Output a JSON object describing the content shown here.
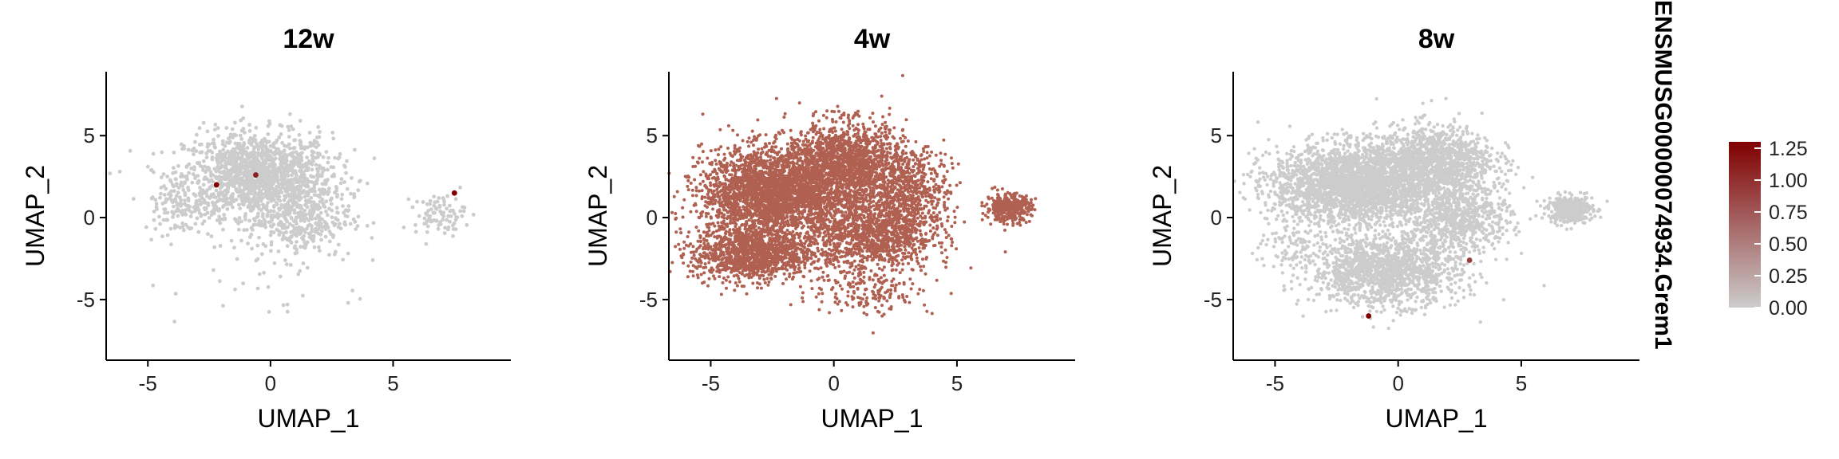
{
  "feature_label": "ENSMUSG00000074934.Grem1",
  "chart_data": [
    {
      "type": "scatter",
      "title": "12w",
      "xlabel": "UMAP_1",
      "ylabel": "UMAP_2",
      "xlim": [
        -6.7,
        9.8
      ],
      "ylim": [
        -8.7,
        8.9
      ],
      "xticks": [
        -5,
        0,
        5
      ],
      "yticks": [
        -5,
        0,
        5
      ],
      "background_color": "#CCCCCC",
      "bulk_expression": 0.0,
      "highlighted_points": [
        {
          "x": -2.2,
          "y": 2.0,
          "value": 1.3
        },
        {
          "x": -0.6,
          "y": 2.6,
          "value": 1.1
        },
        {
          "x": 7.5,
          "y": 1.5,
          "value": 1.3
        }
      ]
    },
    {
      "type": "scatter",
      "title": "4w",
      "xlabel": "UMAP_1",
      "ylabel": "UMAP_2",
      "xlim": [
        -6.7,
        9.8
      ],
      "ylim": [
        -8.7,
        8.9
      ],
      "xticks": [
        -5,
        0,
        5
      ],
      "yticks": [
        -5,
        0,
        5
      ],
      "background_color": "#B06050",
      "bulk_expression": 0.7,
      "highlighted_points": []
    },
    {
      "type": "scatter",
      "title": "8w",
      "xlabel": "UMAP_1",
      "ylabel": "UMAP_2",
      "xlim": [
        -6.7,
        9.8
      ],
      "ylim": [
        -8.7,
        8.9
      ],
      "xticks": [
        -5,
        0,
        5
      ],
      "yticks": [
        -5,
        0,
        5
      ],
      "background_color": "#CCCCCC",
      "bulk_expression": 0.0,
      "highlighted_points": [
        {
          "x": 2.9,
          "y": -2.6,
          "value": 0.9
        },
        {
          "x": -1.2,
          "y": -6.0,
          "value": 1.3
        }
      ]
    }
  ],
  "legend": {
    "ticks": [
      "1.25",
      "1.00",
      "0.75",
      "0.50",
      "0.25",
      "0.00"
    ],
    "tick_values": [
      1.25,
      1.0,
      0.75,
      0.5,
      0.25,
      0.0
    ],
    "min": 0.0,
    "max": 1.3,
    "low_color": "#CCCCCC",
    "high_color": "#800000"
  }
}
